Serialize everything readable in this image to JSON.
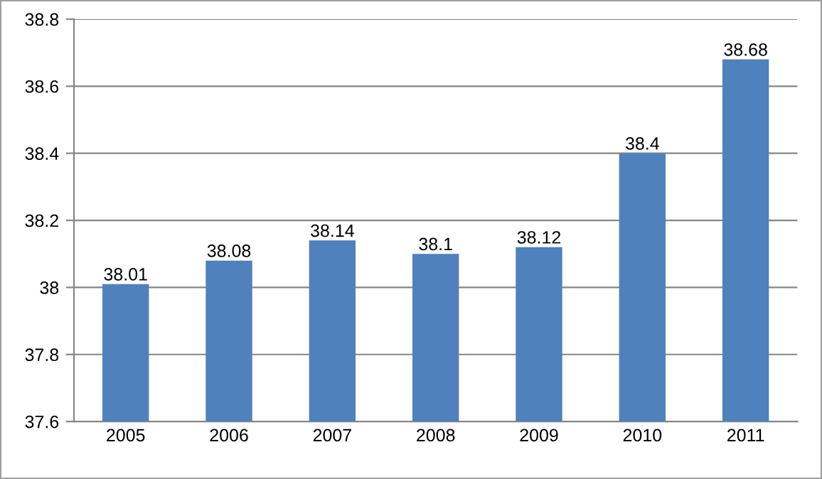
{
  "chart_data": {
    "type": "bar",
    "categories": [
      "2005",
      "2006",
      "2007",
      "2008",
      "2009",
      "2010",
      "2011"
    ],
    "values": [
      38.01,
      38.08,
      38.14,
      38.1,
      38.12,
      38.4,
      38.68
    ],
    "color": "#4f81bd",
    "ylim": [
      37.6,
      38.8
    ],
    "yticks": [
      37.6,
      37.8,
      38,
      38.2,
      38.4,
      38.6,
      38.8
    ],
    "grid": "y",
    "data_labels": true
  }
}
